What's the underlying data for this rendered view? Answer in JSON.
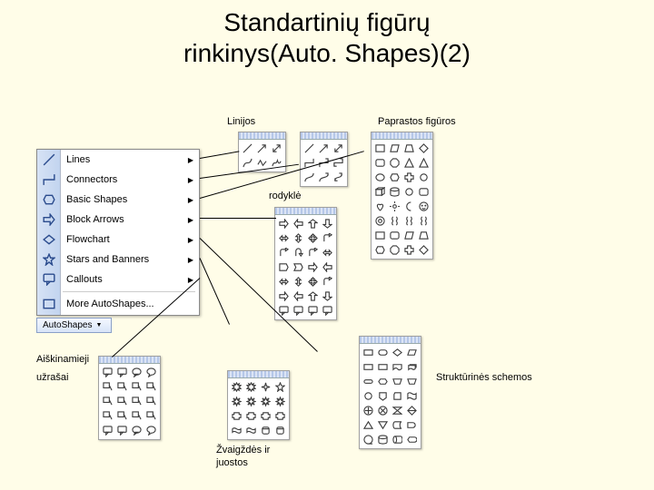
{
  "title_line1": "Standartinių figūrų",
  "title_line2": "rinkinys(Auto. Shapes)(2)",
  "labels": {
    "linijos": "Linijos",
    "paprastos": "Paprastos figūros",
    "rodykle": "rodyklė",
    "aiskinamieji": "Aiškinamieji",
    "uzrasai": "užrašai",
    "zvaigzdes1": "Žvaigždės ir",
    "zvaigzdes2": "juostos",
    "strukturines": "Struktūrinės schemos"
  },
  "menu": {
    "items": [
      {
        "label": "Lines",
        "arrow": true
      },
      {
        "label": "Connectors",
        "arrow": true
      },
      {
        "label": "Basic Shapes",
        "arrow": true
      },
      {
        "label": "Block Arrows",
        "arrow": true
      },
      {
        "label": "Flowchart",
        "arrow": true
      },
      {
        "label": "Stars and Banners",
        "arrow": true
      },
      {
        "label": "Callouts",
        "arrow": true
      },
      {
        "label": "More AutoShapes...",
        "arrow": false
      }
    ],
    "button_label": "AutoShapes"
  },
  "panels": {
    "lines": {
      "cols": 3,
      "rows": 2
    },
    "connectors": {
      "cols": 3,
      "rows": 3
    },
    "basic": {
      "cols": 4,
      "rows": 8
    },
    "arrows": {
      "cols": 4,
      "rows": 7
    },
    "stars": {
      "cols": 4,
      "rows": 4
    },
    "callouts": {
      "cols": 4,
      "rows": 5
    },
    "flowchart": {
      "cols": 4,
      "rows": 7
    }
  }
}
